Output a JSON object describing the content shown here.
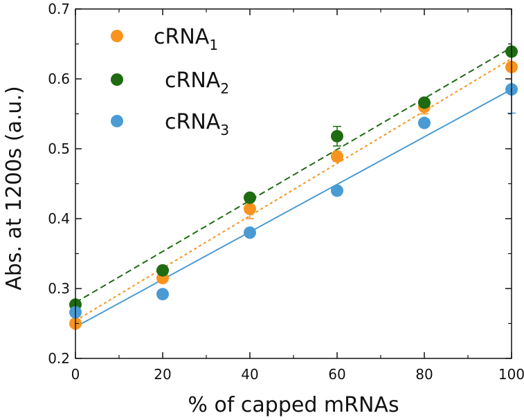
{
  "chart_data": {
    "type": "scatter",
    "xlabel": "% of capped mRNAs",
    "ylabel": "Abs. at 1200s (a.u.)",
    "xlim": [
      0,
      100
    ],
    "ylim": [
      0.2,
      0.7
    ],
    "x_ticks": [
      "0",
      "20",
      "40",
      "60",
      "80",
      "100"
    ],
    "y_ticks": [
      "0.2",
      "0.3",
      "0.4",
      "0.5",
      "0.6",
      "0.7"
    ],
    "grid": false,
    "legend_position": "top-left",
    "x": [
      0,
      20,
      40,
      60,
      80,
      100
    ],
    "series": [
      {
        "name": "cRNA",
        "subscript": "1",
        "color": "#F7931E",
        "values": [
          0.25,
          0.315,
          0.414,
          0.489,
          0.56,
          0.617
        ],
        "errors": [
          0.004,
          0.005,
          0.014,
          0.007,
          0.01,
          0.004
        ],
        "fit_line": [
          0.254,
          0.629
        ],
        "line_style": "dotted"
      },
      {
        "name": "cRNA",
        "subscript": "2",
        "color": "#1E6B12",
        "values": [
          0.277,
          0.326,
          0.43,
          0.518,
          0.566,
          0.639
        ],
        "errors": [
          0.003,
          0.004,
          0.005,
          0.014,
          0.005,
          0.004
        ],
        "fit_line": [
          0.28,
          0.645
        ],
        "line_style": "dashed"
      },
      {
        "name": "cRNA",
        "subscript": "3",
        "color": "#4A9BD4",
        "values": [
          0.266,
          0.292,
          0.38,
          0.44,
          0.537,
          0.585
        ],
        "errors": [
          0.003,
          0.003,
          0.004,
          0.004,
          0.004,
          0.034
        ],
        "fit_line": [
          0.245,
          0.585
        ],
        "line_style": "solid"
      }
    ]
  }
}
